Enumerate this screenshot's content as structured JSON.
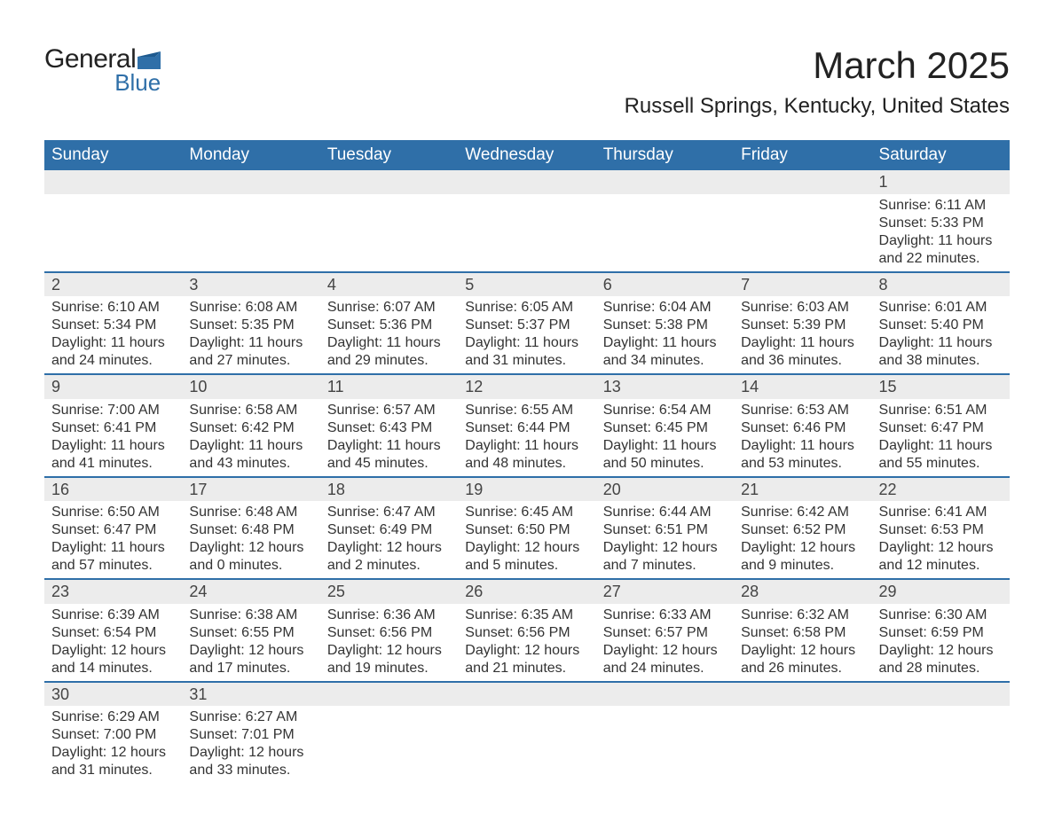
{
  "brand": {
    "general": "General",
    "blue": "Blue",
    "flag_color": "#2f6fa8"
  },
  "title": "March 2025",
  "location": "Russell Springs, Kentucky, United States",
  "colors": {
    "header_bg": "#2f6fa8",
    "header_text": "#ffffff",
    "daynum_bg": "#ececec",
    "row_border": "#2f6fa8",
    "text": "#333333",
    "background": "#ffffff"
  },
  "typography": {
    "title_fontsize": 42,
    "location_fontsize": 24,
    "dayheader_fontsize": 19,
    "daynum_fontsize": 18,
    "body_fontsize": 16,
    "logo_fontsize": 30
  },
  "day_headers": [
    "Sunday",
    "Monday",
    "Tuesday",
    "Wednesday",
    "Thursday",
    "Friday",
    "Saturday"
  ],
  "labels": {
    "sunrise": "Sunrise:",
    "sunset": "Sunset:",
    "daylight": "Daylight:"
  },
  "weeks": [
    [
      {
        "blank": true
      },
      {
        "blank": true
      },
      {
        "blank": true
      },
      {
        "blank": true
      },
      {
        "blank": true
      },
      {
        "blank": true
      },
      {
        "day": "1",
        "sunrise": "6:11 AM",
        "sunset": "5:33 PM",
        "daylight": "11 hours and 22 minutes."
      }
    ],
    [
      {
        "day": "2",
        "sunrise": "6:10 AM",
        "sunset": "5:34 PM",
        "daylight": "11 hours and 24 minutes."
      },
      {
        "day": "3",
        "sunrise": "6:08 AM",
        "sunset": "5:35 PM",
        "daylight": "11 hours and 27 minutes."
      },
      {
        "day": "4",
        "sunrise": "6:07 AM",
        "sunset": "5:36 PM",
        "daylight": "11 hours and 29 minutes."
      },
      {
        "day": "5",
        "sunrise": "6:05 AM",
        "sunset": "5:37 PM",
        "daylight": "11 hours and 31 minutes."
      },
      {
        "day": "6",
        "sunrise": "6:04 AM",
        "sunset": "5:38 PM",
        "daylight": "11 hours and 34 minutes."
      },
      {
        "day": "7",
        "sunrise": "6:03 AM",
        "sunset": "5:39 PM",
        "daylight": "11 hours and 36 minutes."
      },
      {
        "day": "8",
        "sunrise": "6:01 AM",
        "sunset": "5:40 PM",
        "daylight": "11 hours and 38 minutes."
      }
    ],
    [
      {
        "day": "9",
        "sunrise": "7:00 AM",
        "sunset": "6:41 PM",
        "daylight": "11 hours and 41 minutes."
      },
      {
        "day": "10",
        "sunrise": "6:58 AM",
        "sunset": "6:42 PM",
        "daylight": "11 hours and 43 minutes."
      },
      {
        "day": "11",
        "sunrise": "6:57 AM",
        "sunset": "6:43 PM",
        "daylight": "11 hours and 45 minutes."
      },
      {
        "day": "12",
        "sunrise": "6:55 AM",
        "sunset": "6:44 PM",
        "daylight": "11 hours and 48 minutes."
      },
      {
        "day": "13",
        "sunrise": "6:54 AM",
        "sunset": "6:45 PM",
        "daylight": "11 hours and 50 minutes."
      },
      {
        "day": "14",
        "sunrise": "6:53 AM",
        "sunset": "6:46 PM",
        "daylight": "11 hours and 53 minutes."
      },
      {
        "day": "15",
        "sunrise": "6:51 AM",
        "sunset": "6:47 PM",
        "daylight": "11 hours and 55 minutes."
      }
    ],
    [
      {
        "day": "16",
        "sunrise": "6:50 AM",
        "sunset": "6:47 PM",
        "daylight": "11 hours and 57 minutes."
      },
      {
        "day": "17",
        "sunrise": "6:48 AM",
        "sunset": "6:48 PM",
        "daylight": "12 hours and 0 minutes."
      },
      {
        "day": "18",
        "sunrise": "6:47 AM",
        "sunset": "6:49 PM",
        "daylight": "12 hours and 2 minutes."
      },
      {
        "day": "19",
        "sunrise": "6:45 AM",
        "sunset": "6:50 PM",
        "daylight": "12 hours and 5 minutes."
      },
      {
        "day": "20",
        "sunrise": "6:44 AM",
        "sunset": "6:51 PM",
        "daylight": "12 hours and 7 minutes."
      },
      {
        "day": "21",
        "sunrise": "6:42 AM",
        "sunset": "6:52 PM",
        "daylight": "12 hours and 9 minutes."
      },
      {
        "day": "22",
        "sunrise": "6:41 AM",
        "sunset": "6:53 PM",
        "daylight": "12 hours and 12 minutes."
      }
    ],
    [
      {
        "day": "23",
        "sunrise": "6:39 AM",
        "sunset": "6:54 PM",
        "daylight": "12 hours and 14 minutes."
      },
      {
        "day": "24",
        "sunrise": "6:38 AM",
        "sunset": "6:55 PM",
        "daylight": "12 hours and 17 minutes."
      },
      {
        "day": "25",
        "sunrise": "6:36 AM",
        "sunset": "6:56 PM",
        "daylight": "12 hours and 19 minutes."
      },
      {
        "day": "26",
        "sunrise": "6:35 AM",
        "sunset": "6:56 PM",
        "daylight": "12 hours and 21 minutes."
      },
      {
        "day": "27",
        "sunrise": "6:33 AM",
        "sunset": "6:57 PM",
        "daylight": "12 hours and 24 minutes."
      },
      {
        "day": "28",
        "sunrise": "6:32 AM",
        "sunset": "6:58 PM",
        "daylight": "12 hours and 26 minutes."
      },
      {
        "day": "29",
        "sunrise": "6:30 AM",
        "sunset": "6:59 PM",
        "daylight": "12 hours and 28 minutes."
      }
    ],
    [
      {
        "day": "30",
        "sunrise": "6:29 AM",
        "sunset": "7:00 PM",
        "daylight": "12 hours and 31 minutes."
      },
      {
        "day": "31",
        "sunrise": "6:27 AM",
        "sunset": "7:01 PM",
        "daylight": "12 hours and 33 minutes."
      },
      {
        "blank": true
      },
      {
        "blank": true
      },
      {
        "blank": true
      },
      {
        "blank": true
      },
      {
        "blank": true
      }
    ]
  ]
}
